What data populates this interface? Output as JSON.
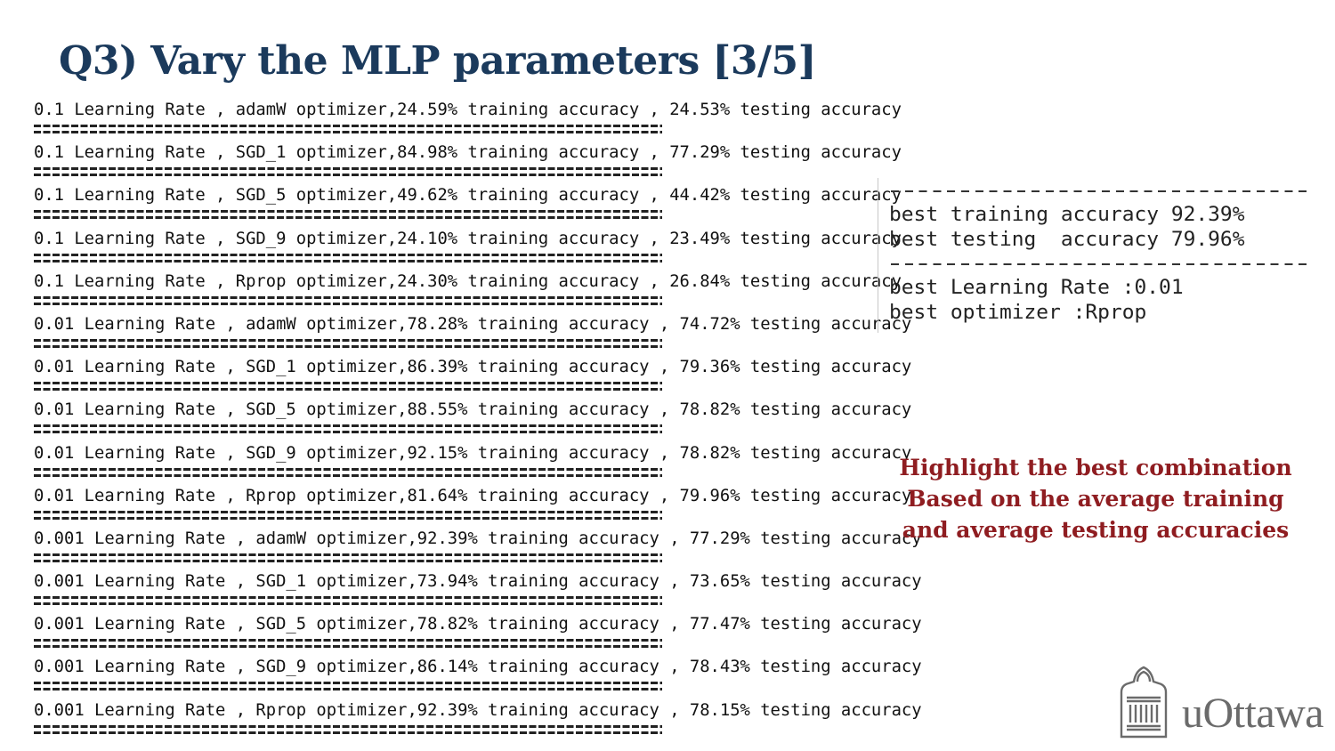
{
  "slide": {
    "title": "Q3) Vary the MLP parameters [3/5]"
  },
  "console": {
    "lines": [
      "0.1 Learning Rate , adamW optimizer,24.59% training accuracy , 24.53% testing accuracy",
      "0.1 Learning Rate , SGD_1 optimizer,84.98% training accuracy , 77.29% testing accuracy",
      "0.1 Learning Rate , SGD_5 optimizer,49.62% training accuracy , 44.42% testing accuracy",
      "0.1 Learning Rate , SGD_9 optimizer,24.10% training accuracy , 23.49% testing accuracy",
      "0.1 Learning Rate , Rprop optimizer,24.30% training accuracy , 26.84% testing accuracy",
      "0.01 Learning Rate , adamW optimizer,78.28% training accuracy , 74.72% testing accuracy",
      "0.01 Learning Rate , SGD_1 optimizer,86.39% training accuracy , 79.36% testing accuracy",
      "0.01 Learning Rate , SGD_5 optimizer,88.55% training accuracy , 78.82% testing accuracy",
      "0.01 Learning Rate , SGD_9 optimizer,92.15% training accuracy , 78.82% testing accuracy",
      "0.01 Learning Rate , Rprop optimizer,81.64% training accuracy , 79.96% testing accuracy",
      "0.001 Learning Rate , adamW optimizer,92.39% training accuracy , 77.29% testing accuracy",
      "0.001 Learning Rate , SGD_1 optimizer,73.94% training accuracy , 73.65% testing accuracy",
      "0.001 Learning Rate , SGD_5 optimizer,78.82% training accuracy , 77.47% testing accuracy",
      "0.001 Learning Rate , SGD_9 optimizer,86.14% training accuracy , 78.43% testing accuracy",
      "0.001 Learning Rate , Rprop optimizer,92.39% training accuracy , 78.15% testing accuracy"
    ]
  },
  "summary": {
    "best_training": "best training accuracy 92.39%",
    "best_testing": "best testing  accuracy 79.96%",
    "best_learning_rate": "best Learning Rate :0.01",
    "best_optimizer": "best optimizer :Rprop"
  },
  "note": {
    "lines": [
      "Highlight the best combination",
      "Based on the average training",
      "and average testing accuracies"
    ],
    "color": "#8f1d21"
  },
  "branding": {
    "logo_text": "uOttawa",
    "logo_icon": "university-building-icon"
  },
  "colors": {
    "title": "#1b3a5c",
    "note": "#8f1d21",
    "logo": "#6b6b6b"
  }
}
